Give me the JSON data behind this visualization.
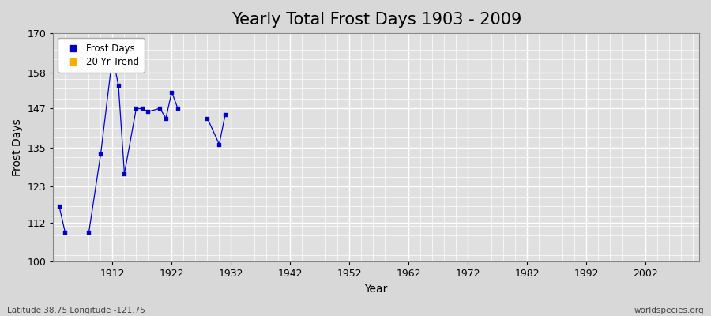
{
  "title": "Yearly Total Frost Days 1903 - 2009",
  "xlabel": "Year",
  "ylabel": "Frost Days",
  "xlim": [
    1902,
    2011
  ],
  "ylim": [
    100,
    170
  ],
  "yticks": [
    100,
    112,
    123,
    135,
    147,
    158,
    170
  ],
  "xticks": [
    1912,
    1922,
    1932,
    1942,
    1952,
    1962,
    1972,
    1982,
    1992,
    2002
  ],
  "segments": [
    [
      [
        1903,
        117
      ],
      [
        1904,
        109
      ]
    ],
    [
      [
        1908,
        109
      ]
    ],
    [
      [
        1910,
        133
      ]
    ],
    [
      [
        1912,
        163
      ],
      [
        1913,
        154
      ],
      [
        1914,
        127
      ]
    ],
    [
      [
        1916,
        147
      ],
      [
        1917,
        147
      ],
      [
        1918,
        146
      ]
    ],
    [
      [
        1920,
        147
      ],
      [
        1921,
        144
      ]
    ],
    [
      [
        1922,
        152
      ],
      [
        1923,
        147
      ]
    ],
    [
      [
        1928,
        144
      ]
    ],
    [
      [
        1930,
        136
      ]
    ],
    [
      [
        1931,
        145
      ]
    ]
  ],
  "frost_x": [
    1903,
    1904,
    1908,
    1910,
    1912,
    1913,
    1914,
    1916,
    1917,
    1918,
    1920,
    1921,
    1922,
    1923,
    1928,
    1930,
    1931
  ],
  "frost_y": [
    117,
    109,
    109,
    133,
    163,
    154,
    127,
    147,
    147,
    146,
    147,
    144,
    152,
    147,
    144,
    136,
    145
  ],
  "line_color": "#0000dd",
  "scatter_color": "#0000cc",
  "bg_color": "#d8d8d8",
  "plot_bg_color": "#e0e0e0",
  "grid_color": "#ffffff",
  "title_fontsize": 15,
  "label_fontsize": 10,
  "tick_fontsize": 9,
  "bottom_left_text": "Latitude 38.75 Longitude -121.75",
  "bottom_right_text": "worldspecies.org",
  "legend_items": [
    "Frost Days",
    "20 Yr Trend"
  ],
  "legend_colors": [
    "#0000cc",
    "#ffaa00"
  ]
}
